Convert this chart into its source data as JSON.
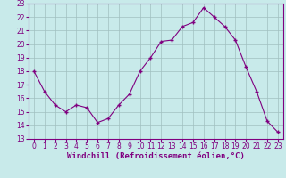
{
  "x": [
    0,
    1,
    2,
    3,
    4,
    5,
    6,
    7,
    8,
    9,
    10,
    11,
    12,
    13,
    14,
    15,
    16,
    17,
    18,
    19,
    20,
    21,
    22,
    23
  ],
  "y": [
    18,
    16.5,
    15.5,
    15,
    15.5,
    15.3,
    14.2,
    14.5,
    15.5,
    16.3,
    18,
    19,
    20.2,
    20.3,
    21.3,
    21.6,
    22.7,
    22,
    21.3,
    20.3,
    18.3,
    16.5,
    14.3,
    13.5
  ],
  "line_color": "#800080",
  "marker_color": "#800080",
  "bg_color": "#c8eaea",
  "grid_color": "#a0c0c0",
  "xlabel": "Windchill (Refroidissement éolien,°C)",
  "xlim_min": -0.5,
  "xlim_max": 23.5,
  "ylim": [
    13,
    23
  ],
  "yticks": [
    13,
    14,
    15,
    16,
    17,
    18,
    19,
    20,
    21,
    22,
    23
  ],
  "xticks": [
    0,
    1,
    2,
    3,
    4,
    5,
    6,
    7,
    8,
    9,
    10,
    11,
    12,
    13,
    14,
    15,
    16,
    17,
    18,
    19,
    20,
    21,
    22,
    23
  ],
  "tick_color": "#800080",
  "spine_color": "#800080",
  "fontsize_label": 6.5,
  "fontsize_tick": 5.5
}
